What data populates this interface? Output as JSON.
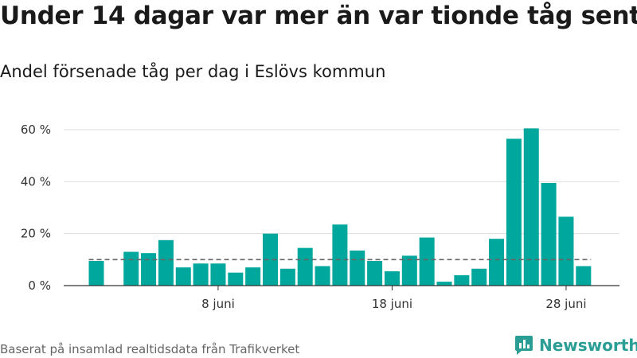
{
  "header": {
    "title": "Under 14 dagar var mer än var tionde tåg sent",
    "subtitle": "Andel försenade tåg per dag i Eslövs kommun"
  },
  "footer": {
    "source": "Baserat på insamlad realtidsdata från Trafikverket",
    "brand": "Newsworthy"
  },
  "colors": {
    "bar": "#00a79c",
    "reference_line": "#666666",
    "grid": "#dddddd",
    "brand": "#2a9d95"
  },
  "chart_data": {
    "type": "bar",
    "title": "Under 14 dagar var mer än var tionde tåg sent",
    "subtitle": "Andel försenade tåg per dag i Eslövs kommun",
    "xlabel": "",
    "ylabel": "",
    "days": [
      1,
      2,
      3,
      4,
      5,
      6,
      7,
      8,
      9,
      10,
      11,
      12,
      13,
      14,
      15,
      16,
      17,
      18,
      19,
      20,
      21,
      22,
      23,
      24,
      25,
      26,
      27,
      28,
      29,
      30
    ],
    "values": [
      9.5,
      0,
      13,
      12.5,
      17.5,
      7,
      8.5,
      8.5,
      5,
      7,
      20,
      6.5,
      14.5,
      7.5,
      23.5,
      13.5,
      9.5,
      5.5,
      11.5,
      18.5,
      1.5,
      4,
      6.5,
      18,
      56.5,
      60.5,
      39.5,
      26.5,
      7.5,
      null
    ],
    "x_ticks": [
      {
        "day": 8,
        "label": "8 juni"
      },
      {
        "day": 18,
        "label": "18 juni"
      },
      {
        "day": 28,
        "label": "28 juni"
      }
    ],
    "y_ticks": [
      {
        "value": 0,
        "label": "0 %"
      },
      {
        "value": 20,
        "label": "20 %"
      },
      {
        "value": 40,
        "label": "40 %"
      },
      {
        "value": 60,
        "label": "60 %"
      }
    ],
    "ylim": [
      0,
      60
    ],
    "xlim": [
      1,
      30
    ],
    "reference_line": {
      "value": 10,
      "style": "dashed"
    },
    "grid": true,
    "legend": "none"
  }
}
